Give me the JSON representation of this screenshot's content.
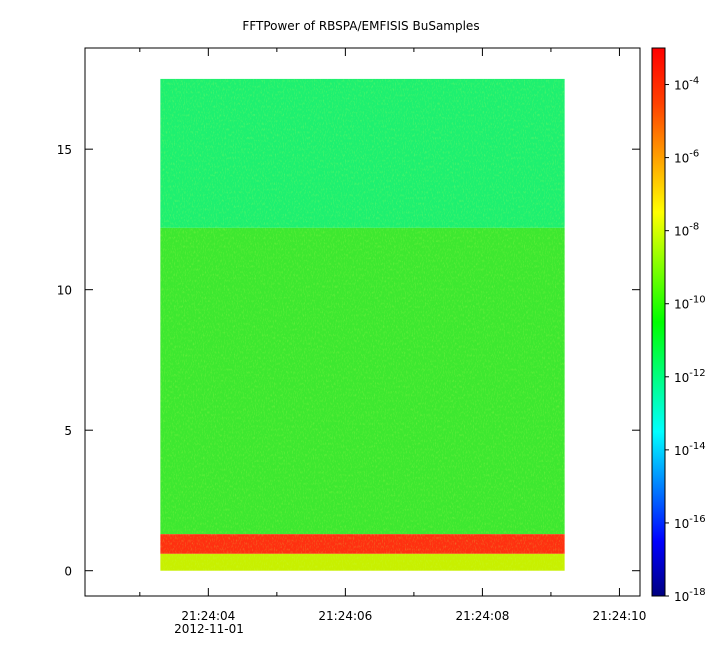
{
  "chart_data": {
    "type": "heatmap",
    "title": "FFTPower of RBSPA/EMFISIS  BuSamples",
    "xlabel": "",
    "ylabel": "",
    "x_ticks": [
      "21:24:04",
      "21:24:06",
      "21:24:08",
      "21:24:10"
    ],
    "x_tick_values": [
      4,
      6,
      8,
      10
    ],
    "x_minor_ticks": [
      3,
      5,
      7,
      9
    ],
    "x_date_label": "2012-11-01",
    "xlim": [
      "21:24:02.2",
      "21:24:10.3"
    ],
    "y_ticks": [
      "0",
      "5",
      "10",
      "15"
    ],
    "y_tick_values": [
      0,
      5,
      10,
      15
    ],
    "ylim": [
      -0.9,
      18.6
    ],
    "data_x_range": [
      "21:24:03.3",
      "21:24:09.2"
    ],
    "data_y_range": [
      0,
      17.5
    ],
    "colorbar": {
      "scale": "log",
      "range": [
        1e-18,
        0.001
      ],
      "tick_exponents": [
        -18,
        -16,
        -14,
        -12,
        -10,
        -8,
        -6,
        -4
      ],
      "tick_base": "10",
      "colors": [
        "#000080",
        "#0000ff",
        "#0080ff",
        "#00ffff",
        "#00ff80",
        "#00ff00",
        "#80ff00",
        "#ffff00",
        "#ffa000",
        "#ff4000",
        "#ff0000"
      ]
    },
    "bands": [
      {
        "y_from": 12.2,
        "y_to": 17.5,
        "color": "#1ef070"
      },
      {
        "y_from": 1.3,
        "y_to": 12.2,
        "color": "#3de830"
      },
      {
        "y_from": 0.6,
        "y_to": 1.3,
        "color": "#ff3010"
      },
      {
        "y_from": 0.0,
        "y_to": 0.6,
        "color": "#c8f000"
      }
    ]
  }
}
